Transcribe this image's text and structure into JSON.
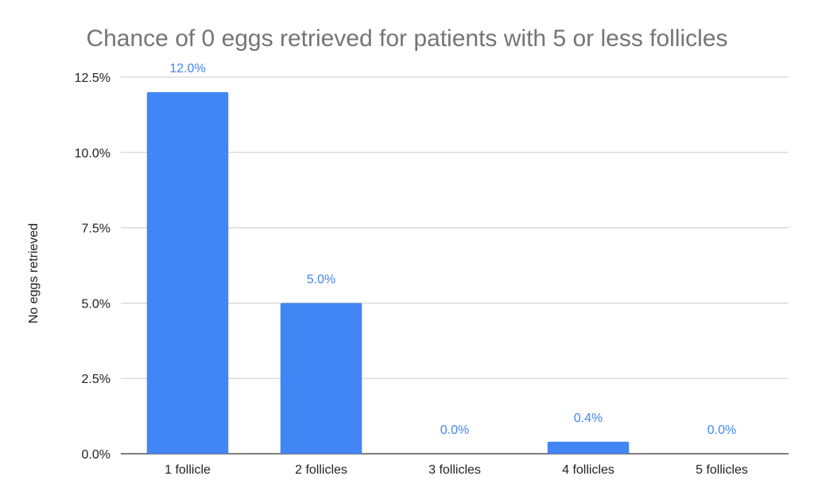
{
  "chart_data": {
    "type": "bar",
    "title": "Chance of 0 eggs retrieved for patients with 5 or less follicles",
    "xlabel": "",
    "ylabel": "No eggs retrieved",
    "categories": [
      "1 follicle",
      "2 follicles",
      "3 follicles",
      "4 follicles",
      "5 follicles"
    ],
    "series": [
      {
        "values": [
          12.0,
          5.0,
          0.0,
          0.4,
          0.0
        ],
        "data_labels": [
          "12.0%",
          "5.0%",
          "0.0%",
          "0.4%",
          "0.0%"
        ],
        "color": "#4285f4"
      }
    ],
    "ylim": [
      0,
      12.5
    ],
    "yticks": [
      0,
      2.5,
      5.0,
      7.5,
      10.0,
      12.5
    ],
    "ytick_labels": [
      "0.0%",
      "2.5%",
      "5.0%",
      "7.5%",
      "10.0%",
      "12.5%"
    ],
    "grid": true,
    "legend": "none",
    "label_color": "#4285f4"
  }
}
